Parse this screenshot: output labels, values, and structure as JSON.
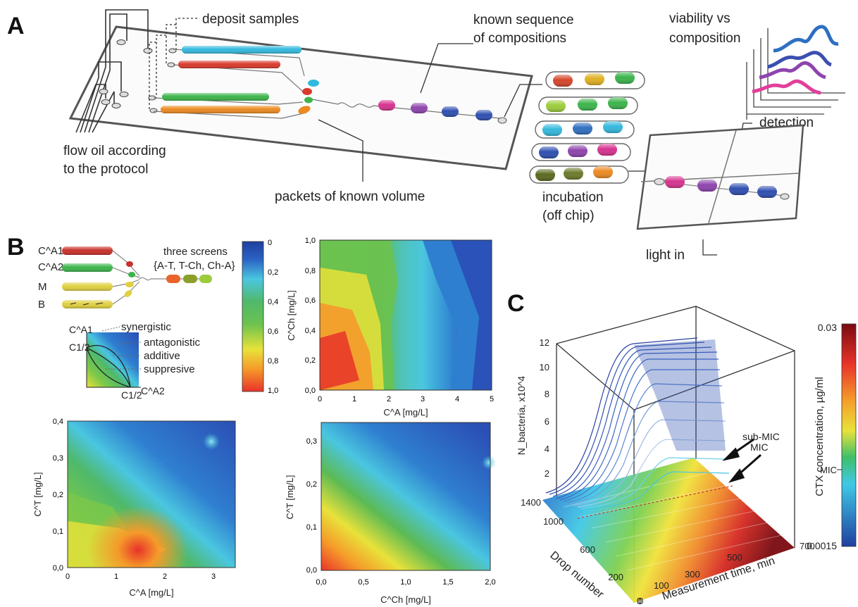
{
  "panels": {
    "A": {
      "letter": "A",
      "labels": {
        "deposit": "deposit samples",
        "known_seq_1": "known sequence",
        "known_seq_2": "of compositions",
        "viability_1": "viability vs",
        "viability_2": "composition",
        "detection": "detection",
        "flow_1": "flow oil according",
        "flow_2": "to the protocol",
        "packets": "packets of known volume",
        "incubation_1": "incubation",
        "incubation_2": "(off chip)",
        "light_in": "light in"
      },
      "colors": {
        "cyan": "#33b9dd",
        "red": "#d93a2b",
        "green": "#3cb44b",
        "orange": "#ec8a21",
        "magenta": "#d6338f",
        "purple": "#8e44ad",
        "blue": "#2f4fb0",
        "olive": "#6b7a2a",
        "lime": "#9ccc3c"
      }
    },
    "B": {
      "letter": "B",
      "schematic": {
        "rows": [
          "C^A1",
          "C^A2",
          "M",
          "B"
        ],
        "screens_1": "three screens",
        "screens_2": "{A-T, T-Ch, Ch-A}",
        "legend_y": "C^A1",
        "legend_x": "C^A2",
        "half_y": "C1/2",
        "half_x": "C1/2",
        "curves": [
          "synergistic",
          "antagonistic",
          "additive",
          "suppresive"
        ]
      },
      "colorbar": {
        "ticks": [
          "0",
          "0,2",
          "0,4",
          "0,6",
          "0,8",
          "1,0"
        ]
      },
      "plot_top": {
        "xlabel": "C^A [mg/L]",
        "ylabel": "C^Ch [mg/L]",
        "xticks": [
          "0",
          "1",
          "2",
          "3",
          "4",
          "5"
        ],
        "yticks": [
          "0,0",
          "0,2",
          "0,4",
          "0,6",
          "0,8",
          "1,0"
        ]
      },
      "plot_left": {
        "xlabel": "C^A [mg/L]",
        "ylabel": "C^T [mg/L]",
        "xticks": [
          "0",
          "1",
          "2",
          "3"
        ],
        "yticks": [
          "0,0",
          "0,1",
          "0,2",
          "0,3",
          "0,4"
        ]
      },
      "plot_right": {
        "xlabel": "C^Ch [mg/L]",
        "ylabel": "C^T [mg/L]",
        "xticks": [
          "0,0",
          "0,5",
          "1,0",
          "1,5",
          "2,0"
        ],
        "yticks": [
          "0,0",
          "0,1",
          "0,2",
          "0,3"
        ]
      }
    },
    "C": {
      "letter": "C",
      "zlabel": "N_bacteria, x10^4",
      "zticks": [
        "2",
        "4",
        "6",
        "8",
        "10",
        "12"
      ],
      "drop_label": "Drop number",
      "drop_ticks": [
        "1400",
        "1000",
        "600",
        "200",
        "0"
      ],
      "time_label": "Measurement time, min",
      "time_ticks": [
        "0",
        "100",
        "300",
        "500",
        "700"
      ],
      "sub_mic": "sub-MIC",
      "mic": "MIC",
      "colorbar_label": "CTX concentration, µg/ml",
      "colorbar_top": "0.03",
      "colorbar_mid": "MIC",
      "colorbar_bottom": "0.0015"
    }
  }
}
